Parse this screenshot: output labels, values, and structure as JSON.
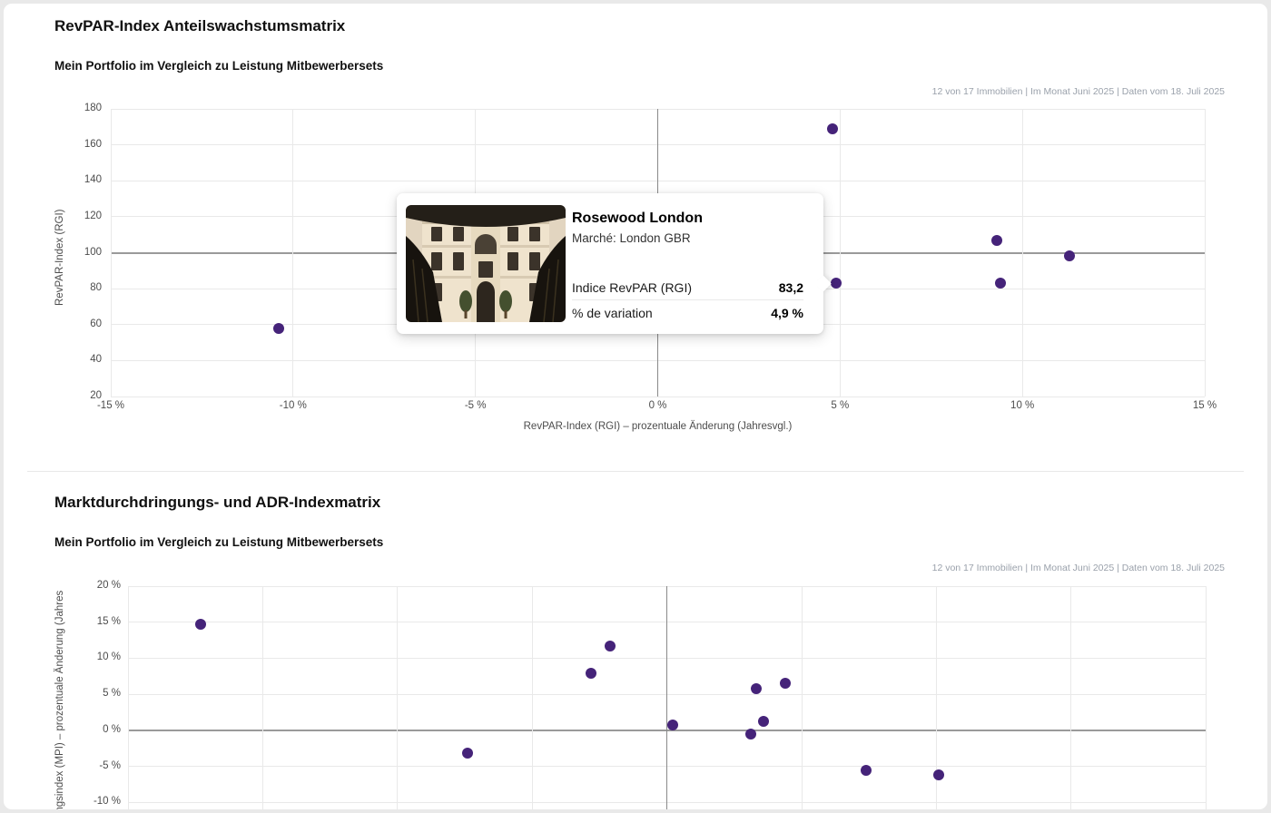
{
  "sections": [
    {
      "title": "RevPAR-Index Anteilswachstumsmatrix",
      "subtitle": "Mein Portfolio im Vergleich zu Leistung Mitbewerbersets",
      "meta": "12 von 17 Immobilien | Im Monat Juni 2025 | Daten vom 18. Juli 2025"
    },
    {
      "title": "Marktdurchdringungs- und ADR-Indexmatrix",
      "subtitle": "Mein Portfolio im Vergleich zu Leistung Mitbewerbersets",
      "meta": "12 von 17 Immobilien | Im Monat Juni 2025 | Daten vom 18. Juli 2025"
    }
  ],
  "tooltip": {
    "hotel_name": "Rosewood London",
    "market": "Marché: London GBR",
    "photo": "rosewood-london-facade-photo",
    "rows": [
      {
        "label": "Indice RevPAR (RGI)",
        "value": "83,2"
      },
      {
        "label": "% de variation",
        "value": "4,9 %"
      }
    ]
  },
  "colors": {
    "point": "#452379",
    "grid_light": "#e9e9e9",
    "grid_dark": "#909090",
    "meta_text": "#9aa1ab"
  },
  "chart_data": [
    {
      "type": "scatter",
      "title": "RevPAR-Index Anteilswachstumsmatrix",
      "xlabel": "RevPAR-Index (RGI) – prozentuale Änderung (Jahresvgl.)",
      "ylabel": "RevPAR-Index (RGI)",
      "xlim": [
        -15,
        15
      ],
      "ylim": [
        20,
        180
      ],
      "x_ticks": [
        "-15 %",
        "-10 %",
        "-5 %",
        "0 %",
        "5 %",
        "10 %",
        "15 %"
      ],
      "y_ticks": [
        "180",
        "160",
        "140",
        "120",
        "100",
        "80",
        "60",
        "40",
        "20"
      ],
      "reference_lines": {
        "x": 0,
        "y": 100
      },
      "grid": true,
      "legend": "none",
      "points": [
        {
          "x": -10.4,
          "y": 58
        },
        {
          "x": 4.8,
          "y": 169
        },
        {
          "x": 4.9,
          "y": 83.2,
          "label": "Rosewood London",
          "highlighted": true
        },
        {
          "x": 9.3,
          "y": 107
        },
        {
          "x": 9.4,
          "y": 83
        },
        {
          "x": 11.3,
          "y": 98
        }
      ],
      "note_points_hidden_behind_tooltip": true
    },
    {
      "type": "scatter",
      "title": "Marktdurchdringungs- und ADR-Indexmatrix",
      "ylabel_visible_fragment": "ungsindex (MPI) – prozentuale Änderung (Jahres",
      "y_ticks": [
        "20 %",
        "15 %",
        "10 %",
        "5 %",
        "0 %",
        "-5 %",
        "-10 %"
      ],
      "ylim_visible": [
        -11,
        20
      ],
      "xlim_estimated": [
        -20,
        20
      ],
      "x_axis_cut_off": true,
      "reference_lines": {
        "x": 0,
        "y": 0
      },
      "grid": true,
      "legend": "none",
      "points": [
        {
          "x": -17.3,
          "y": 14.7
        },
        {
          "x": -7.4,
          "y": -3.2
        },
        {
          "x": -2.8,
          "y": 7.9
        },
        {
          "x": -2.1,
          "y": 11.7
        },
        {
          "x": 0.2,
          "y": 0.7
        },
        {
          "x": 3.1,
          "y": -0.5
        },
        {
          "x": 3.3,
          "y": 5.8
        },
        {
          "x": 3.6,
          "y": 1.2
        },
        {
          "x": 4.4,
          "y": 6.5
        },
        {
          "x": 7.4,
          "y": -5.6
        },
        {
          "x": 10.1,
          "y": -6.2
        }
      ]
    }
  ]
}
